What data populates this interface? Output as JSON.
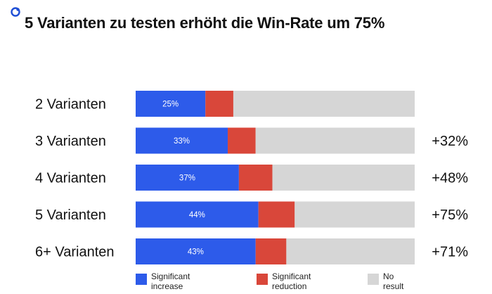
{
  "title": "5 Varianten zu testen erhöht die Win-Rate um 75%",
  "logo_icon": "brand-logo-icon",
  "colors": {
    "increase": "#2d5bea",
    "reduction": "#d9473a",
    "no_result": "#d6d6d6",
    "logo": "#1f4fd6"
  },
  "chart_data": {
    "type": "bar",
    "orientation": "horizontal",
    "stacked": true,
    "title": "5 Varianten zu testen erhöht die Win-Rate um 75%",
    "categories": [
      "2 Varianten",
      "3 Varianten",
      "4 Varianten",
      "5 Varianten",
      "6+ Varianten"
    ],
    "xlim": [
      0,
      100
    ],
    "series": [
      {
        "name": "Significant increase",
        "legend_lines": [
          "Significant",
          "increase"
        ],
        "values": [
          25,
          33,
          37,
          44,
          43
        ],
        "labels": [
          "25%",
          "33%",
          "37%",
          "44%",
          "43%"
        ]
      },
      {
        "name": "Significant reduction",
        "legend_lines": [
          "Significant",
          "reduction"
        ],
        "values": [
          10,
          10,
          12,
          13,
          11
        ]
      },
      {
        "name": "No result",
        "legend_lines": [
          "No",
          "result"
        ],
        "values": [
          65,
          57,
          51,
          43,
          46
        ]
      }
    ],
    "annotations": [
      "",
      "+32%",
      "+48%",
      "+75%",
      "+71%"
    ],
    "legend_position": "bottom",
    "grid": false
  }
}
